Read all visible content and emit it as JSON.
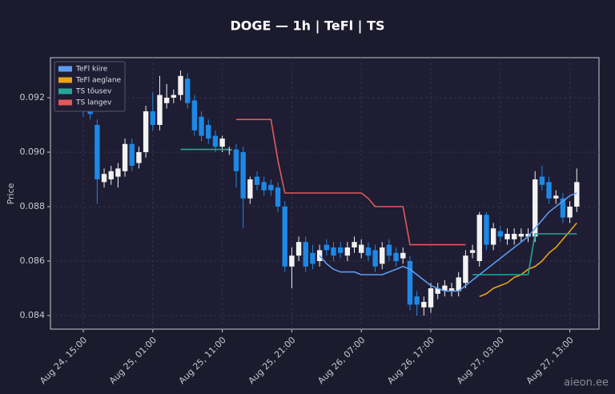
{
  "chart_data": {
    "type": "candlestick",
    "title": "DOGE — 1h  |  TeFl  |  TS",
    "y_label": "Price",
    "watermark": "aieon.ee",
    "up_color": "#f2f2f2",
    "down_color": "#1e88e5",
    "ylim": [
      0.0835,
      0.09347
    ],
    "yticks": [
      {
        "value": 0.084,
        "label": "0.084"
      },
      {
        "value": 0.086,
        "label": "0.086"
      },
      {
        "value": 0.088,
        "label": "0.088"
      },
      {
        "value": 0.09,
        "label": "0.090"
      },
      {
        "value": 0.092,
        "label": "0.092"
      }
    ],
    "grid": true,
    "legend": "upper left",
    "x": [
      "Aug 24, 15:00",
      "Aug 24, 16:00",
      "Aug 24, 17:00",
      "Aug 24, 18:00",
      "Aug 24, 19:00",
      "Aug 24, 20:00",
      "Aug 24, 21:00",
      "Aug 24, 22:00",
      "Aug 24, 23:00",
      "Aug 25, 00:00",
      "Aug 25, 01:00",
      "Aug 25, 02:00",
      "Aug 25, 03:00",
      "Aug 25, 04:00",
      "Aug 25, 05:00",
      "Aug 25, 06:00",
      "Aug 25, 07:00",
      "Aug 25, 08:00",
      "Aug 25, 09:00",
      "Aug 25, 10:00",
      "Aug 25, 11:00",
      "Aug 25, 12:00",
      "Aug 25, 13:00",
      "Aug 25, 14:00",
      "Aug 25, 15:00",
      "Aug 25, 16:00",
      "Aug 25, 17:00",
      "Aug 25, 18:00",
      "Aug 25, 19:00",
      "Aug 25, 20:00",
      "Aug 25, 21:00",
      "Aug 25, 22:00",
      "Aug 25, 23:00",
      "Aug 26, 00:00",
      "Aug 26, 01:00",
      "Aug 26, 02:00",
      "Aug 26, 03:00",
      "Aug 26, 04:00",
      "Aug 26, 05:00",
      "Aug 26, 06:00",
      "Aug 26, 07:00",
      "Aug 26, 08:00",
      "Aug 26, 09:00",
      "Aug 26, 10:00",
      "Aug 26, 11:00",
      "Aug 26, 12:00",
      "Aug 26, 13:00",
      "Aug 26, 14:00",
      "Aug 26, 15:00",
      "Aug 26, 16:00",
      "Aug 26, 17:00",
      "Aug 26, 18:00",
      "Aug 26, 19:00",
      "Aug 26, 20:00",
      "Aug 26, 21:00",
      "Aug 26, 22:00",
      "Aug 26, 23:00",
      "Aug 27, 00:00",
      "Aug 27, 01:00",
      "Aug 27, 02:00",
      "Aug 27, 03:00",
      "Aug 27, 04:00",
      "Aug 27, 05:00",
      "Aug 27, 06:00",
      "Aug 27, 07:00",
      "Aug 27, 08:00",
      "Aug 27, 09:00",
      "Aug 27, 10:00",
      "Aug 27, 11:00",
      "Aug 27, 12:00",
      "Aug 27, 13:00",
      "Aug 27, 14:00"
    ],
    "xticks": [
      "Aug 24, 15:00",
      "Aug 25, 01:00",
      "Aug 25, 11:00",
      "Aug 25, 21:00",
      "Aug 26, 07:00",
      "Aug 26, 17:00",
      "Aug 27, 03:00",
      "Aug 27, 13:00"
    ],
    "open": [
      0.092,
      0.0918,
      0.091,
      0.0889,
      0.089,
      0.0891,
      0.0893,
      0.0903,
      0.0896,
      0.09,
      0.0915,
      0.091,
      0.0918,
      0.092,
      0.0921,
      0.0927,
      0.0919,
      0.0913,
      0.091,
      0.0906,
      0.0902,
      0.0901,
      0.0901,
      0.09,
      0.0883,
      0.0891,
      0.0889,
      0.0888,
      0.0887,
      0.088,
      0.0858,
      0.0862,
      0.0867,
      0.0863,
      0.086,
      0.0866,
      0.0865,
      0.0865,
      0.0862,
      0.0865,
      0.0863,
      0.0865,
      0.0864,
      0.0859,
      0.0866,
      0.0863,
      0.0861,
      0.086,
      0.0847,
      0.0843,
      0.0843,
      0.0848,
      0.0849,
      0.0849,
      0.0849,
      0.0852,
      0.0863,
      0.086,
      0.0877,
      0.0866,
      0.0871,
      0.0868,
      0.0868,
      0.0869,
      0.0869,
      0.0869,
      0.0891,
      0.0889,
      0.0883,
      0.0883,
      0.0876,
      0.088
    ],
    "high": [
      0.0922,
      0.092,
      0.0912,
      0.0894,
      0.0895,
      0.0896,
      0.0905,
      0.0905,
      0.0902,
      0.0917,
      0.0922,
      0.0928,
      0.0925,
      0.0923,
      0.093,
      0.0929,
      0.0921,
      0.0915,
      0.0912,
      0.0908,
      0.0906,
      0.0902,
      0.0903,
      0.0902,
      0.0891,
      0.0893,
      0.0891,
      0.089,
      0.0889,
      0.0882,
      0.0865,
      0.0869,
      0.0869,
      0.0866,
      0.0866,
      0.0868,
      0.0867,
      0.0867,
      0.0867,
      0.0869,
      0.0868,
      0.0867,
      0.0866,
      0.0867,
      0.0868,
      0.0865,
      0.0865,
      0.0862,
      0.0849,
      0.0847,
      0.0852,
      0.0852,
      0.0853,
      0.0852,
      0.0856,
      0.0864,
      0.0866,
      0.0878,
      0.0878,
      0.0874,
      0.0873,
      0.0872,
      0.0872,
      0.0872,
      0.0872,
      0.0893,
      0.0895,
      0.0891,
      0.0886,
      0.0885,
      0.0882,
      0.0894
    ],
    "low": [
      0.0913,
      0.0912,
      0.0881,
      0.0887,
      0.0888,
      0.0887,
      0.0891,
      0.0893,
      0.0894,
      0.0898,
      0.0908,
      0.0908,
      0.0916,
      0.0918,
      0.0919,
      0.0916,
      0.0906,
      0.0904,
      0.0903,
      0.09,
      0.09,
      0.0899,
      0.0887,
      0.0872,
      0.0881,
      0.0886,
      0.0884,
      0.0884,
      0.0878,
      0.0856,
      0.085,
      0.086,
      0.0856,
      0.0857,
      0.0858,
      0.0862,
      0.086,
      0.0861,
      0.086,
      0.0863,
      0.0861,
      0.086,
      0.0856,
      0.0857,
      0.086,
      0.0858,
      0.0859,
      0.0842,
      0.084,
      0.084,
      0.0841,
      0.0846,
      0.0847,
      0.0847,
      0.0847,
      0.085,
      0.0861,
      0.0858,
      0.0864,
      0.0864,
      0.0867,
      0.0866,
      0.0866,
      0.0867,
      0.0867,
      0.0867,
      0.0886,
      0.0881,
      0.0881,
      0.0874,
      0.0874,
      0.0878
    ],
    "close": [
      0.0915,
      0.0914,
      0.089,
      0.0892,
      0.0893,
      0.0894,
      0.0903,
      0.0895,
      0.09,
      0.0915,
      0.091,
      0.0921,
      0.092,
      0.0921,
      0.0928,
      0.0918,
      0.0908,
      0.0906,
      0.0905,
      0.0902,
      0.0905,
      0.0901,
      0.0893,
      0.0883,
      0.089,
      0.0888,
      0.0886,
      0.0886,
      0.088,
      0.0858,
      0.0862,
      0.0867,
      0.0858,
      0.0859,
      0.0864,
      0.0864,
      0.0862,
      0.0863,
      0.0865,
      0.0867,
      0.0866,
      0.0862,
      0.0858,
      0.0865,
      0.0862,
      0.086,
      0.0863,
      0.0844,
      0.0844,
      0.0845,
      0.085,
      0.085,
      0.0851,
      0.085,
      0.0854,
      0.0862,
      0.0864,
      0.0877,
      0.0866,
      0.0872,
      0.0869,
      0.087,
      0.087,
      0.087,
      0.087,
      0.089,
      0.0888,
      0.0883,
      0.0884,
      0.0876,
      0.088,
      0.0889
    ],
    "series": [
      {
        "name": "TeFl kiire",
        "color": "#5b9cf0",
        "values": [
          null,
          null,
          null,
          null,
          null,
          null,
          null,
          null,
          null,
          null,
          null,
          null,
          null,
          null,
          null,
          null,
          null,
          null,
          null,
          null,
          null,
          null,
          null,
          null,
          null,
          null,
          null,
          null,
          null,
          null,
          null,
          null,
          null,
          null,
          0.0862,
          0.0859,
          0.0857,
          0.0856,
          0.0856,
          0.0856,
          0.0855,
          0.0855,
          0.0855,
          0.0855,
          0.0856,
          0.0857,
          0.0858,
          0.0857,
          0.0855,
          0.0853,
          0.0851,
          0.085,
          0.0849,
          0.0849,
          0.0849,
          0.0851,
          0.0853,
          0.0855,
          0.0857,
          0.0859,
          0.0861,
          0.0863,
          0.0865,
          0.0867,
          0.0869,
          0.0872,
          0.0875,
          0.0878,
          0.088,
          0.0882,
          0.0884,
          0.0885
        ]
      },
      {
        "name": "TeFl aeglane",
        "color": "#e8a317",
        "values": [
          null,
          null,
          null,
          null,
          null,
          null,
          null,
          null,
          null,
          null,
          null,
          null,
          null,
          null,
          null,
          null,
          null,
          null,
          null,
          null,
          null,
          null,
          null,
          null,
          null,
          null,
          null,
          null,
          null,
          null,
          null,
          null,
          null,
          null,
          null,
          null,
          null,
          null,
          null,
          null,
          null,
          null,
          null,
          null,
          null,
          null,
          null,
          null,
          null,
          null,
          null,
          null,
          null,
          null,
          null,
          null,
          null,
          0.0847,
          0.0848,
          0.085,
          0.0851,
          0.0852,
          0.0854,
          0.0855,
          0.0857,
          0.0858,
          0.086,
          0.0863,
          0.0865,
          0.0868,
          0.0871,
          0.0874
        ]
      },
      {
        "name": "TS tõusev",
        "color": "#26a69a",
        "values": [
          null,
          null,
          null,
          null,
          null,
          null,
          null,
          null,
          null,
          null,
          null,
          null,
          null,
          null,
          0.0901,
          0.0901,
          0.0901,
          0.0901,
          0.0901,
          0.0901,
          0.0901,
          0.0901,
          null,
          null,
          null,
          null,
          null,
          null,
          null,
          null,
          null,
          null,
          null,
          null,
          null,
          null,
          null,
          null,
          null,
          null,
          null,
          null,
          null,
          null,
          null,
          null,
          null,
          null,
          null,
          null,
          null,
          null,
          null,
          null,
          null,
          null,
          0.0855,
          0.0855,
          0.0855,
          0.0855,
          0.0855,
          0.0855,
          0.0855,
          0.0855,
          0.0855,
          0.087,
          0.087,
          0.087,
          0.087,
          0.087,
          0.087,
          0.087
        ]
      },
      {
        "name": "TS langev",
        "color": "#e05a5a",
        "values": [
          null,
          null,
          null,
          null,
          null,
          null,
          null,
          null,
          null,
          null,
          null,
          null,
          null,
          null,
          null,
          null,
          null,
          null,
          null,
          null,
          null,
          null,
          0.0912,
          0.0912,
          0.0912,
          0.0912,
          0.0912,
          0.0912,
          0.0897,
          0.0885,
          0.0885,
          0.0885,
          0.0885,
          0.0885,
          0.0885,
          0.0885,
          0.0885,
          0.0885,
          0.0885,
          0.0885,
          0.0885,
          0.0883,
          0.088,
          0.088,
          0.088,
          0.088,
          0.088,
          0.0866,
          0.0866,
          0.0866,
          0.0866,
          0.0866,
          0.0866,
          0.0866,
          0.0866,
          0.0866,
          null,
          null,
          null,
          null,
          null,
          null,
          null,
          null,
          null,
          null,
          null,
          null,
          null,
          null,
          null,
          null
        ]
      }
    ]
  }
}
